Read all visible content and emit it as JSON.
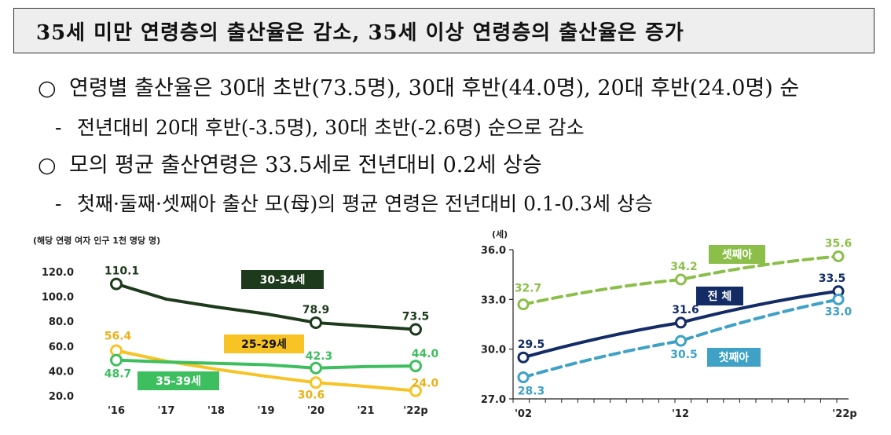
{
  "header": {
    "title": "35세 미만 연령층의 출산율은 감소, 35세 이상 연령층의 출산율은 증가"
  },
  "bullets": [
    {
      "marker": "○",
      "text": "연령별 출산율은 30대 초반(73.5명), 30대 후반(44.0명), 20대 후반(24.0명) 순",
      "sub_marker": "-",
      "sub_text": "전년대비 20대 후반(-3.5명), 30대 초반(-2.6명) 순으로 감소"
    },
    {
      "marker": "○",
      "text": "모의 평균 출산연령은 33.5세로 전년대비 0.2세 상승",
      "sub_marker": "-",
      "sub_text": "첫째·둘째·셋째아 출산 모(母)의 평균 연령은 전년대비 0.1-0.3세 상승"
    }
  ],
  "chart_data": [
    {
      "type": "line",
      "unit_note": "(해당 연령 여자 인구 1천 명당 명)",
      "x": [
        "'16",
        "'17",
        "'18",
        "'19",
        "'20",
        "'21",
        "'22p"
      ],
      "y_ticks": [
        "20.0",
        "40.0",
        "60.0",
        "80.0",
        "100.0",
        "120.0"
      ],
      "ylim": [
        20,
        120
      ],
      "series": [
        {
          "name": "30-34세",
          "color": "#1d3a1d",
          "values": [
            110.1,
            97.9,
            91.5,
            86.0,
            78.9,
            76.1,
            73.5
          ],
          "labels": [
            "110.1",
            null,
            null,
            null,
            "78.9",
            null,
            "73.5"
          ],
          "label_color": "#1d3a1d"
        },
        {
          "name": "25-29세",
          "color": "#f7c325",
          "values": [
            56.4,
            47.9,
            41.4,
            35.7,
            30.6,
            27.5,
            24.0
          ],
          "labels": [
            "56.4",
            null,
            null,
            null,
            "30.6",
            null,
            "24.0"
          ],
          "label_color": "#eab21a"
        },
        {
          "name": "35-39세",
          "color": "#3ebf5f",
          "values": [
            48.7,
            47.2,
            46.1,
            45.0,
            42.3,
            43.5,
            44.0
          ],
          "labels": [
            "48.7",
            null,
            null,
            null,
            "42.3",
            null,
            "44.0"
          ],
          "label_color": "#3ebf5f"
        }
      ]
    },
    {
      "type": "line",
      "unit_note": "(세)",
      "x": [
        "'02",
        "'12",
        "'22p"
      ],
      "y_ticks": [
        "27.0",
        "30.0",
        "33.0",
        "36.0"
      ],
      "ylim": [
        27,
        36
      ],
      "series": [
        {
          "name": "셋째아",
          "color": "#8cbf4a",
          "dashed": true,
          "values": [
            32.7,
            34.2,
            35.6
          ],
          "labels": [
            "32.7",
            "34.2",
            "35.6"
          ],
          "label_color": "#8cbf4a"
        },
        {
          "name": "전 체",
          "color": "#132c66",
          "dashed": false,
          "values": [
            29.5,
            31.6,
            33.5
          ],
          "labels": [
            "29.5",
            "31.6",
            "33.5"
          ],
          "label_color": "#132c66"
        },
        {
          "name": "첫째아",
          "color": "#3fa1c5",
          "dashed": true,
          "values": [
            28.3,
            30.5,
            33.0
          ],
          "labels": [
            "28.3",
            "30.5",
            "33.0"
          ],
          "label_color": "#3fa1c5"
        }
      ]
    }
  ]
}
